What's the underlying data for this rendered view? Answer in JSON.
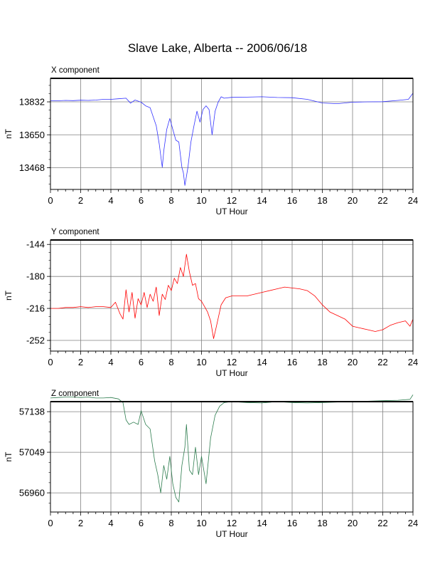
{
  "title": "Slave Lake, Alberta -- 2006/06/18",
  "colors": {
    "x": "#3333ff",
    "y": "#ff0000",
    "z": "#2e7d4f",
    "grid": "#808080"
  },
  "chart_data": [
    {
      "type": "line",
      "title": "X component",
      "xlabel": "UT Hour",
      "ylabel": "nT",
      "xlim": [
        0,
        24
      ],
      "ylim": [
        13348,
        13962
      ],
      "x_ticks": [
        0,
        2,
        4,
        6,
        8,
        10,
        12,
        14,
        16,
        18,
        20,
        22,
        24
      ],
      "y_ticks": [
        13832,
        13650,
        13468
      ],
      "grid": true,
      "series": [
        {
          "color": "#3333ff",
          "x": [
            0,
            0.5,
            1,
            1.5,
            2,
            2.5,
            3,
            3.5,
            4,
            4.5,
            5,
            5.3,
            5.6,
            6,
            6.3,
            6.6,
            7,
            7.2,
            7.4,
            7.5,
            7.7,
            7.9,
            8.1,
            8.3,
            8.5,
            8.7,
            8.8,
            8.9,
            9.0,
            9.1,
            9.3,
            9.5,
            9.7,
            9.9,
            10.1,
            10.3,
            10.5,
            10.7,
            10.9,
            11.1,
            11.3,
            11.5,
            12,
            13,
            14,
            15,
            16,
            17,
            18,
            19,
            20,
            21,
            22,
            23,
            23.7,
            24
          ],
          "values": [
            13838,
            13838,
            13840,
            13839,
            13841,
            13840,
            13842,
            13846,
            13846,
            13849,
            13852,
            13825,
            13842,
            13830,
            13810,
            13800,
            13700,
            13600,
            13470,
            13560,
            13680,
            13740,
            13680,
            13620,
            13610,
            13470,
            13440,
            13370,
            13420,
            13470,
            13610,
            13700,
            13780,
            13720,
            13790,
            13810,
            13790,
            13650,
            13780,
            13830,
            13860,
            13852,
            13857,
            13858,
            13860,
            13856,
            13855,
            13846,
            13826,
            13822,
            13830,
            13832,
            13833,
            13840,
            13846,
            13880
          ]
        }
      ]
    },
    {
      "type": "line",
      "title": "Y component",
      "xlabel": "UT Hour",
      "ylabel": "nT",
      "xlim": [
        0,
        24
      ],
      "ylim": [
        -264,
        -139
      ],
      "x_ticks": [
        0,
        2,
        4,
        6,
        8,
        10,
        12,
        14,
        16,
        18,
        20,
        22,
        24
      ],
      "y_ticks": [
        -144,
        -180,
        -216,
        -252
      ],
      "grid": true,
      "series": [
        {
          "color": "#ff0000",
          "x": [
            0,
            0.5,
            1,
            1.5,
            2,
            2.5,
            3,
            3.5,
            4,
            4.3,
            4.6,
            4.8,
            5.0,
            5.2,
            5.4,
            5.6,
            5.8,
            6.0,
            6.2,
            6.4,
            6.6,
            6.8,
            7.0,
            7.2,
            7.4,
            7.6,
            7.8,
            8.0,
            8.2,
            8.4,
            8.6,
            8.8,
            9.0,
            9.2,
            9.4,
            9.6,
            9.8,
            10.0,
            10.2,
            10.4,
            10.6,
            10.8,
            11.0,
            11.3,
            11.6,
            12,
            13,
            14,
            15,
            15.5,
            16,
            16.5,
            17,
            17.5,
            18,
            18.5,
            19,
            19.5,
            20,
            20.5,
            21,
            21.5,
            22,
            22.5,
            23,
            23.5,
            23.8,
            24
          ],
          "values": [
            -216,
            -216,
            -215,
            -215,
            -214,
            -215,
            -214,
            -214,
            -215,
            -209,
            -222,
            -228,
            -195,
            -220,
            -198,
            -227,
            -205,
            -212,
            -198,
            -215,
            -200,
            -208,
            -192,
            -224,
            -200,
            -206,
            -190,
            -196,
            -182,
            -188,
            -170,
            -180,
            -155,
            -175,
            -190,
            -188,
            -205,
            -208,
            -214,
            -220,
            -230,
            -250,
            -235,
            -212,
            -204,
            -202,
            -202,
            -198,
            -194,
            -192,
            -193,
            -194,
            -196,
            -202,
            -212,
            -220,
            -224,
            -228,
            -236,
            -238,
            -240,
            -242,
            -240,
            -235,
            -232,
            -230,
            -236,
            -228
          ]
        }
      ]
    },
    {
      "type": "line",
      "title": "Z component",
      "xlabel": "UT Hour",
      "ylabel": "nT",
      "xlim": [
        0,
        24
      ],
      "ylim": [
        56918,
        57160
      ],
      "x_ticks": [
        0,
        2,
        4,
        6,
        8,
        10,
        12,
        14,
        16,
        18,
        20,
        22,
        24
      ],
      "y_ticks": [
        57138,
        57049,
        56960
      ],
      "grid": true,
      "series": [
        {
          "color": "#2e7d4f",
          "x": [
            0,
            0.5,
            1,
            1.5,
            2,
            2.5,
            3,
            3.5,
            4,
            4.5,
            4.8,
            5.0,
            5.2,
            5.5,
            5.8,
            6.0,
            6.3,
            6.6,
            6.9,
            7.1,
            7.3,
            7.5,
            7.7,
            7.9,
            8.1,
            8.3,
            8.5,
            8.7,
            8.9,
            9.0,
            9.2,
            9.4,
            9.6,
            9.8,
            10.0,
            10.3,
            10.6,
            10.9,
            11.2,
            11.5,
            12,
            13,
            14,
            15,
            16,
            17,
            18,
            19,
            20,
            21,
            22,
            23,
            23.8,
            24
          ],
          "values": [
            57168,
            57169,
            57170,
            57170,
            57169,
            57170,
            57168,
            57168,
            57169,
            57166,
            57158,
            57120,
            57110,
            57115,
            57110,
            57140,
            57110,
            57100,
            57030,
            57000,
            56960,
            57020,
            56990,
            57040,
            56980,
            56950,
            56940,
            57020,
            57060,
            57110,
            57010,
            57000,
            57060,
            57000,
            57040,
            56980,
            57080,
            57130,
            57150,
            57158,
            57160,
            57158,
            57157,
            57160,
            57158,
            57157,
            57158,
            57159,
            57160,
            57161,
            57162,
            57163,
            57165,
            57175
          ]
        }
      ]
    }
  ]
}
